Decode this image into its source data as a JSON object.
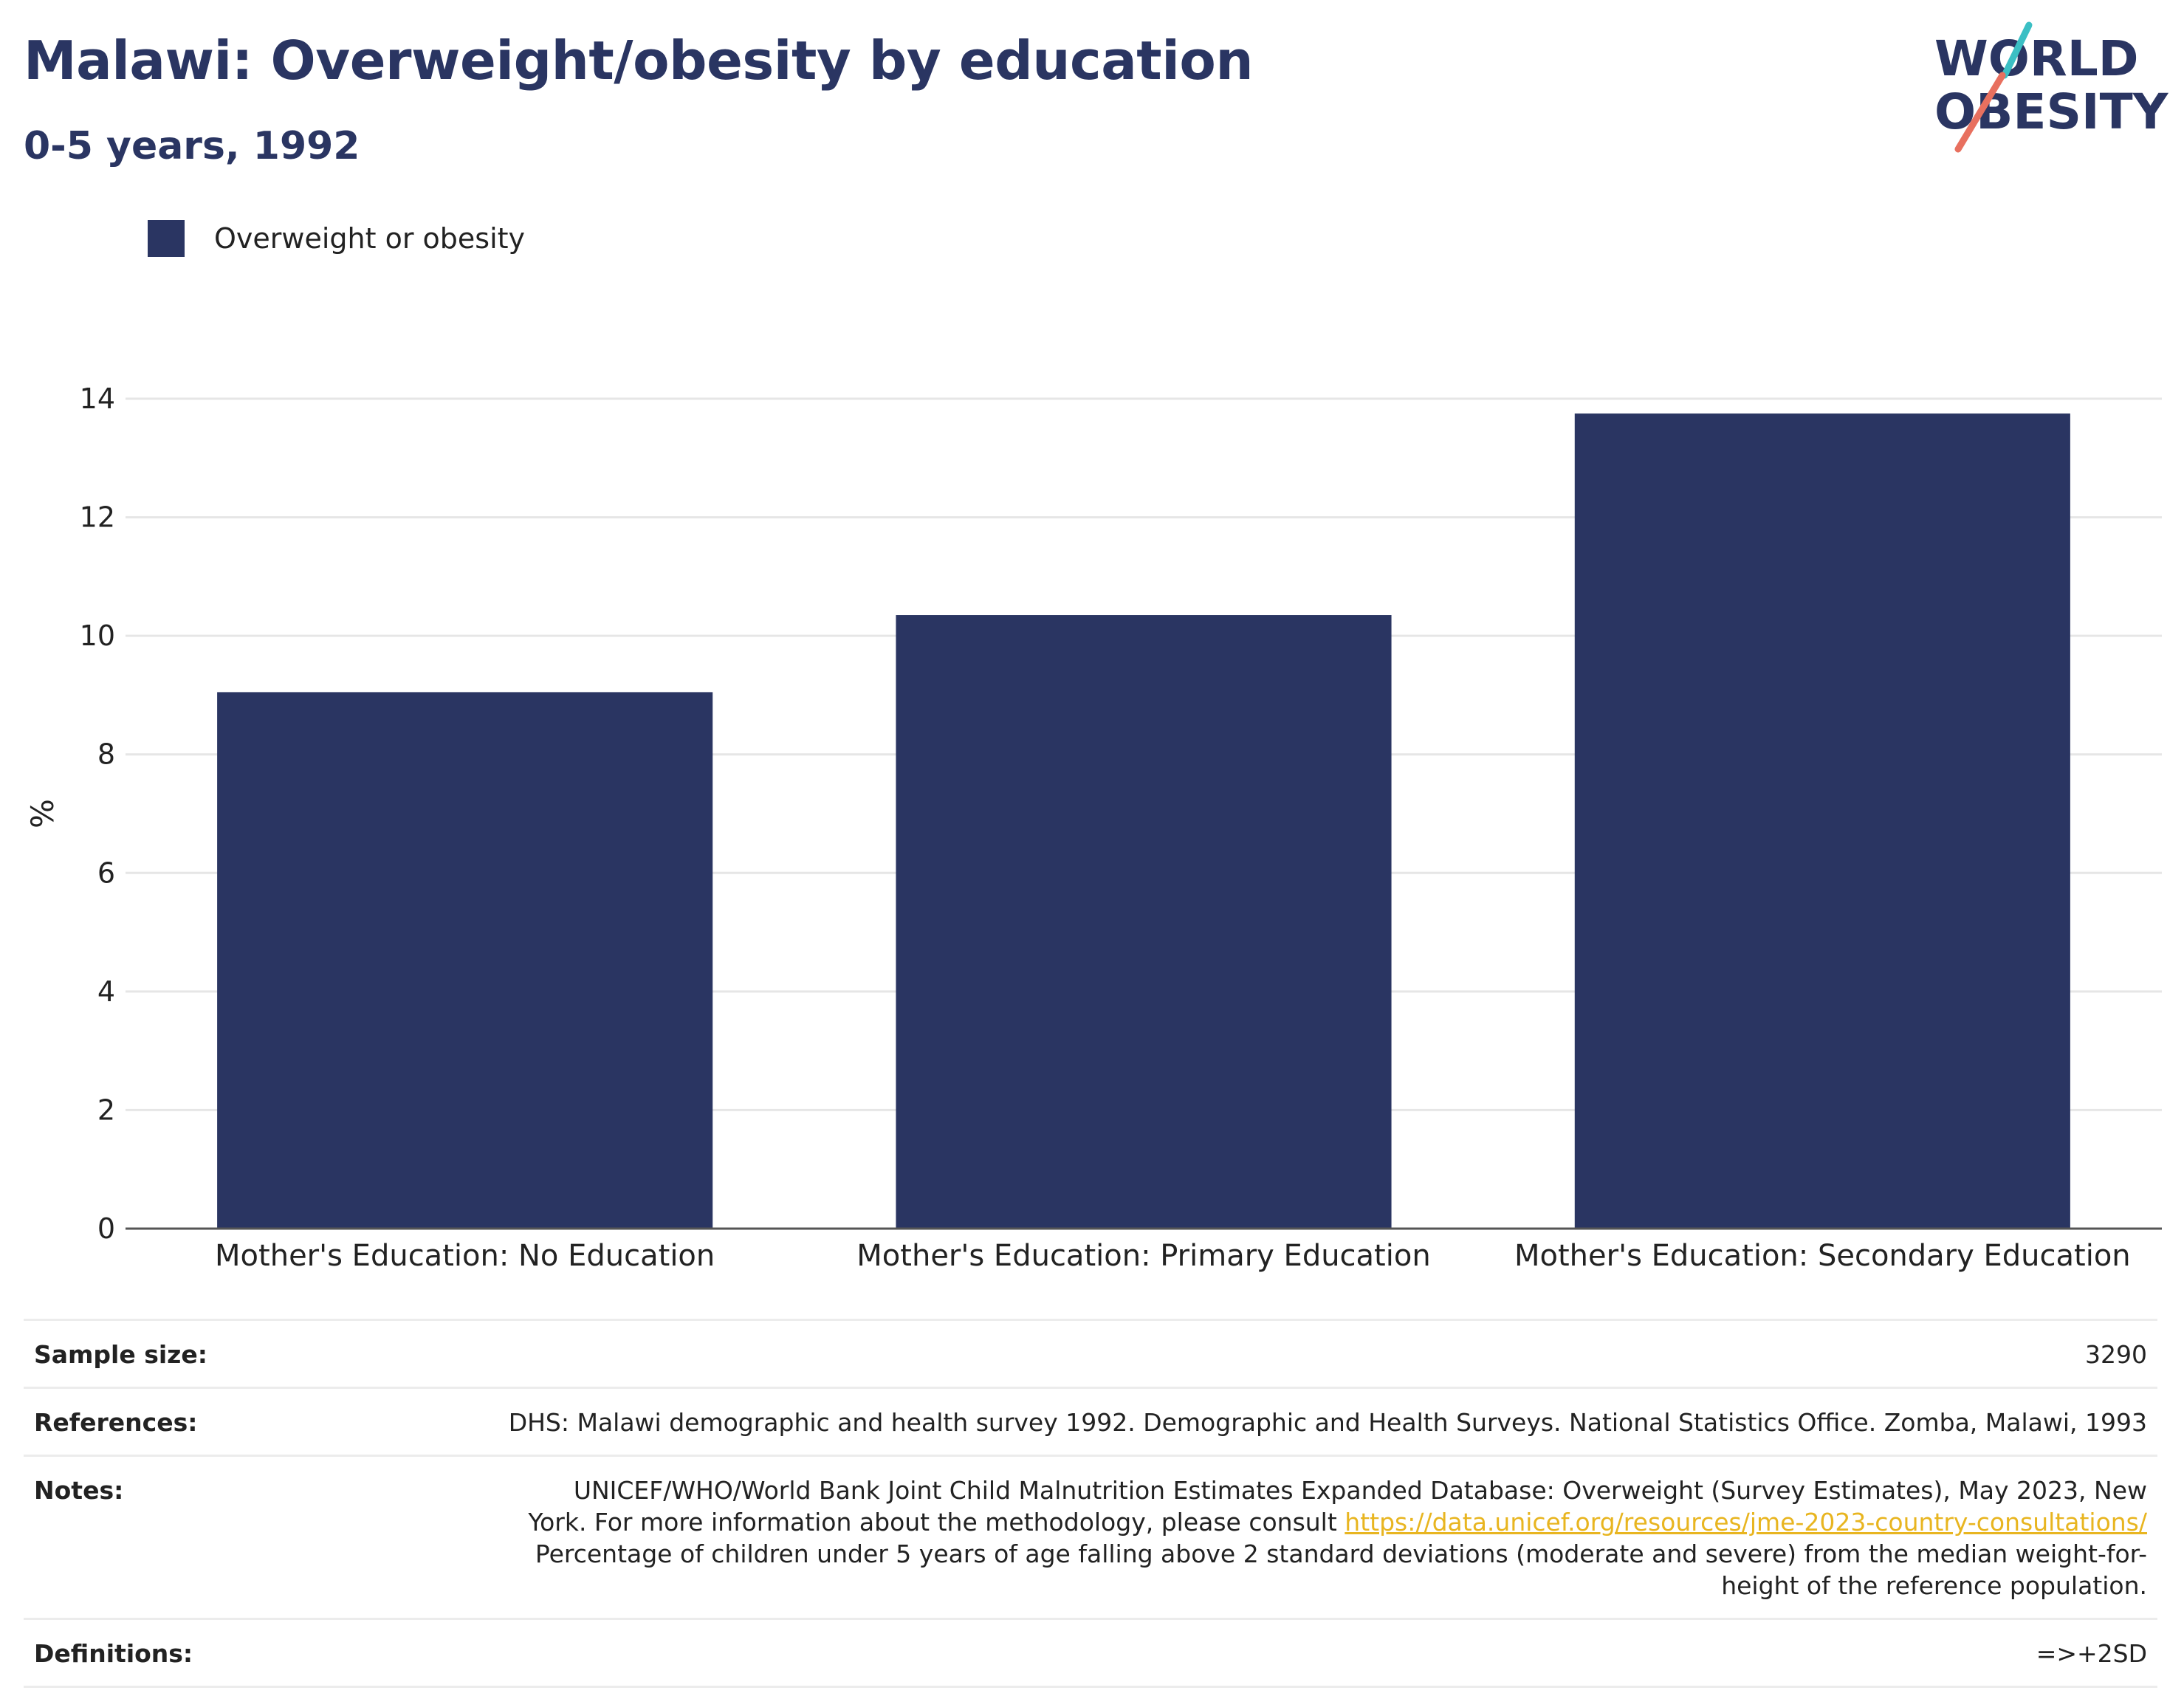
{
  "header": {
    "title": "Malawi: Overweight/obesity by education",
    "subtitle": "0-5 years, 1992"
  },
  "logo": {
    "line1": "WORLD",
    "line2": "OBESITY",
    "accent_teal": "#3bbfc4",
    "accent_coral": "#e8705f"
  },
  "legend": {
    "label": "Overweight or obesity",
    "color": "#2a3562"
  },
  "chart_data": {
    "type": "bar",
    "categories": [
      "Mother's Education: No Education",
      "Mother's Education: Primary Education",
      "Mother's Education: Secondary Education"
    ],
    "series": [
      {
        "name": "Overweight or obesity",
        "values": [
          9.05,
          10.35,
          13.75
        ],
        "color": "#2a3562"
      }
    ],
    "ylabel": "%",
    "ylim": [
      0,
      14
    ],
    "yticks": [
      0,
      2,
      4,
      6,
      8,
      10,
      12,
      14
    ],
    "grid": true,
    "legend_position": "top-left"
  },
  "info": {
    "sample_size_label": "Sample size:",
    "sample_size_value": "3290",
    "references_label": "References:",
    "references_value": "DHS: Malawi demographic and health survey 1992. Demographic and Health Surveys. National Statistics Office. Zomba, Malawi, 1993",
    "notes_label": "Notes:",
    "notes_line1": "UNICEF/WHO/World Bank Joint Child Malnutrition Estimates Expanded Database: Overweight (Survey Estimates), May 2023, New",
    "notes_line2_prefix": "York. For more information about the methodology, please consult",
    "notes_link": "https://data.unicef.org/resources/jme-2023-country-consultations/",
    "notes_line3": "Percentage of children under 5 years of age falling above 2 standard deviations (moderate and severe) from the median weight-for-",
    "notes_line4": "height of the reference population.",
    "definitions_label": "Definitions:",
    "definitions_value": "=>+2SD"
  }
}
